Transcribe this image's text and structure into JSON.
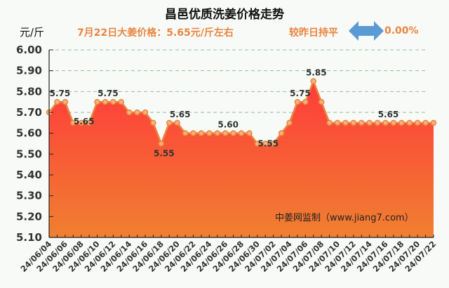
{
  "header": {
    "title": "昌邑优质洗姜价格走势",
    "unit": "元/斤",
    "price_text": "7月22日大姜价格：5.65元/斤左右",
    "compare_text": "较昨日持平",
    "change_pct": "0.00%",
    "arrow_icon": "double-arrow-icon",
    "arrow_color": "#5b9bd5"
  },
  "watermark": "中姜网监制（www.jiang7.com）",
  "colors": {
    "line": "#e9853f",
    "fill_top": "#ff3b3b",
    "fill_bottom": "#f08030",
    "text_accent": "#e9853f",
    "grid": "#8fbf9f"
  },
  "chart_data": {
    "type": "area",
    "title": "昌邑优质洗姜价格走势",
    "xlabel": "",
    "ylabel": "元/斤",
    "ylim": [
      5.1,
      6.0
    ],
    "yticks": [
      6.0,
      5.9,
      5.8,
      5.7,
      5.6,
      5.5,
      5.4,
      5.3,
      5.2,
      5.1
    ],
    "grid": "dashed horizontal at 5.70, 5.80, 5.90, 6.00",
    "legend": "none",
    "x_tick_labels": [
      "24/06/04",
      "24/06/06",
      "24/06/08",
      "24/06/10",
      "24/06/12",
      "24/06/14",
      "24/06/16",
      "24/06/18",
      "24/06/20",
      "24/06/22",
      "24/06/24",
      "24/06/26",
      "24/06/28",
      "24/06/30",
      "24/07/02",
      "24/07/04",
      "24/07/06",
      "24/07/08",
      "24/07/10",
      "24/07/12",
      "24/07/14",
      "24/07/16",
      "24/07/18",
      "24/07/20",
      "24/07/22"
    ],
    "x": [
      "24/06/04",
      "24/06/05",
      "24/06/06",
      "24/06/07",
      "24/06/08",
      "24/06/09",
      "24/06/10",
      "24/06/11",
      "24/06/12",
      "24/06/13",
      "24/06/14",
      "24/06/15",
      "24/06/16",
      "24/06/17",
      "24/06/18",
      "24/06/19",
      "24/06/20",
      "24/06/21",
      "24/06/22",
      "24/06/23",
      "24/06/24",
      "24/06/25",
      "24/06/26",
      "24/06/27",
      "24/06/28",
      "24/06/29",
      "24/06/30",
      "24/07/01",
      "24/07/02",
      "24/07/03",
      "24/07/04",
      "24/07/05",
      "24/07/06",
      "24/07/07",
      "24/07/08",
      "24/07/09",
      "24/07/10",
      "24/07/11",
      "24/07/12",
      "24/07/13",
      "24/07/14",
      "24/07/15",
      "24/07/16",
      "24/07/17",
      "24/07/18",
      "24/07/19",
      "24/07/20",
      "24/07/21",
      "24/07/22"
    ],
    "values": [
      5.7,
      5.75,
      5.75,
      5.65,
      5.65,
      5.65,
      5.75,
      5.75,
      5.75,
      5.75,
      5.7,
      5.7,
      5.7,
      5.65,
      5.55,
      5.65,
      5.65,
      5.6,
      5.6,
      5.6,
      5.6,
      5.6,
      5.6,
      5.6,
      5.6,
      5.6,
      5.55,
      5.55,
      5.55,
      5.6,
      5.65,
      5.75,
      5.75,
      5.85,
      5.75,
      5.65,
      5.65,
      5.65,
      5.65,
      5.65,
      5.65,
      5.65,
      5.65,
      5.65,
      5.65,
      5.65,
      5.65,
      5.65,
      5.65
    ],
    "annotations": [
      {
        "index": 1,
        "text": "5.75"
      },
      {
        "index": 4,
        "text": "5.65"
      },
      {
        "index": 7,
        "text": "5.75"
      },
      {
        "index": 14,
        "text": "5.55"
      },
      {
        "index": 16,
        "text": "5.65"
      },
      {
        "index": 22,
        "text": "5.60"
      },
      {
        "index": 27,
        "text": "5.55"
      },
      {
        "index": 31,
        "text": "5.75"
      },
      {
        "index": 33,
        "text": "5.85"
      },
      {
        "index": 42,
        "text": "5.65"
      }
    ]
  }
}
